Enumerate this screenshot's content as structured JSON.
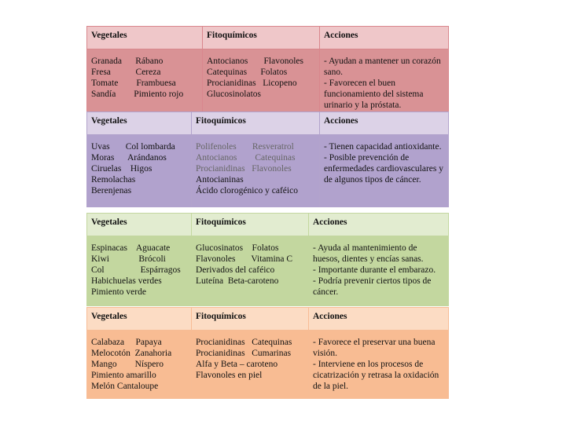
{
  "tables": [
    {
      "headers": [
        "Vegetales",
        "Fitoquímicos",
        "Acciones"
      ],
      "vegetales": [
        "Granada      Rábano",
        "Fresa           Cereza",
        "Tomate        Frambuesa",
        "Sandía        Pimiento rojo"
      ],
      "fitoquimicos": [
        "Antocianos       Flavonoles",
        "Catequinas      Folatos",
        "Procianidinas   Licopeno",
        "Glucosinolatos"
      ],
      "acciones": [
        "- Ayudan a mantener un corazón sano.",
        "- Favorecen el buen funcionamiento del sistema urinario y la próstata."
      ],
      "colors": {
        "header": "#efc7c9",
        "body": "#d99295"
      }
    },
    {
      "headers": [
        "Vegetales",
        "Fitoquímicos",
        "Acciones"
      ],
      "vegetales": [
        "Uvas       Col lombarda",
        "Moras      Arándanos",
        "Ciruelas    Higos",
        "Remolachas",
        "Berenjenas"
      ],
      "fitoquimicos": [
        "Polifenoles       Resveratrol",
        "Antocianos        Catequinas",
        "Procianidinas   Flavonoles",
        "Antocianinas",
        "Ácido clorogénico y caféico"
      ],
      "acciones": [
        "- Tienen capacidad antioxidante.",
        "- Posible prevención de enfermedades cardiovasculares y de algunos tipos de cáncer."
      ],
      "colors": {
        "header": "#dcd2e7",
        "body": "#b1a2cd"
      }
    },
    {
      "headers": [
        "Vegetales",
        "Fitoquímicos",
        "Acciones"
      ],
      "vegetales": [
        "Espinacas    Aguacate",
        "Kiwi             Brócoli",
        "Col                Espárragos",
        "Habichuelas verdes",
        "Pimiento verde"
      ],
      "fitoquimicos": [
        "Glucosinatos    Folatos",
        "Flavonoles       Vitamina C",
        "Derivados del caféico",
        "Luteína  Beta-caroteno"
      ],
      "acciones": [
        "- Ayuda al mantenimiento de huesos, dientes y encías sanas.",
        "- Importante durante el embarazo.",
        "-  Podría prevenir ciertos tipos de cáncer."
      ],
      "colors": {
        "header": "#e2ecd0",
        "body": "#c3d79f"
      }
    },
    {
      "headers": [
        "Vegetales",
        "Fitoquímicos",
        "Acciones"
      ],
      "vegetales": [
        "Calabaza     Papaya",
        "Melocotón  Zanahoria",
        "Mango        Níspero",
        "Pimiento amarillo",
        "Melón Cantaloupe"
      ],
      "fitoquimicos": [
        "Procianidinas   Catequinas",
        "Procianidinas   Cumarinas",
        "Alfa y Beta – caroteno",
        "Flavonoles en piel"
      ],
      "acciones": [
        "- Favorece el preservar una buena visión.",
        "- Interviene en los procesos de cicatrización  y retrasa la oxidación de la piel."
      ],
      "colors": {
        "header": "#fcdcc4",
        "body": "#f8bc93"
      }
    }
  ]
}
